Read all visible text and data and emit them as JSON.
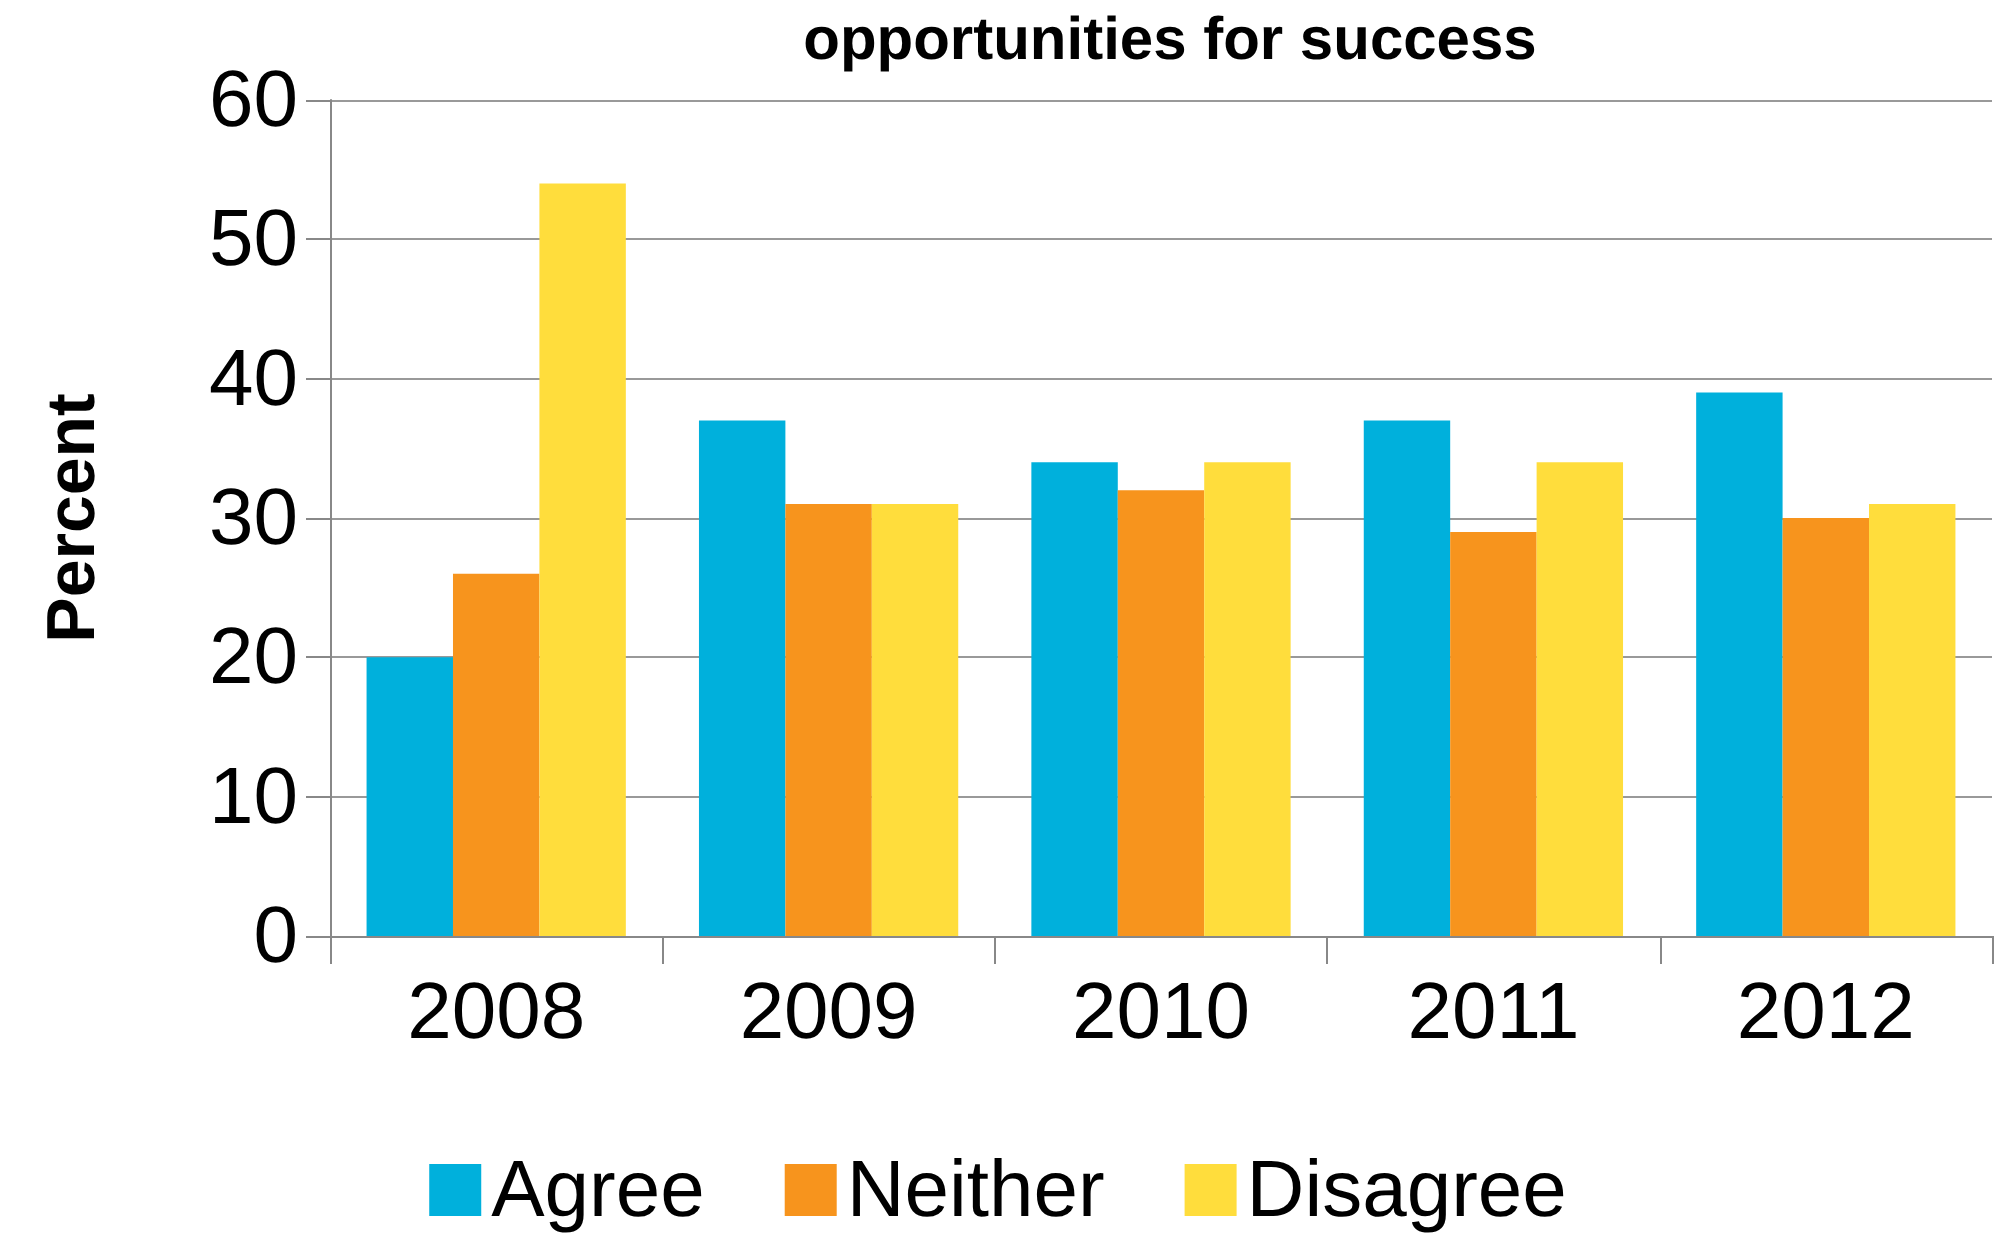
{
  "chart_data": {
    "type": "bar",
    "title": "opportunities for success",
    "ylabel": "Percent",
    "categories": [
      "2008",
      "2009",
      "2010",
      "2011",
      "2012"
    ],
    "series": [
      {
        "name": "Agree",
        "color": "#00b0dc",
        "values": [
          20,
          37,
          34,
          37,
          39
        ]
      },
      {
        "name": "Neither",
        "color": "#f7941d",
        "values": [
          26,
          31,
          32,
          29,
          30
        ]
      },
      {
        "name": "Disagree",
        "color": "#ffdd3c",
        "values": [
          54,
          31,
          34,
          34,
          31
        ]
      }
    ],
    "ylim": [
      0,
      60
    ],
    "yticks": [
      0,
      10,
      20,
      30,
      40,
      50,
      60
    ],
    "grid": "y",
    "legend": "bottom"
  }
}
